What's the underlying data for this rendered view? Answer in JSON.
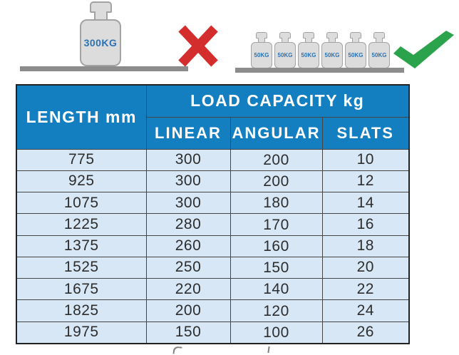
{
  "illustration": {
    "wrong": {
      "weight_label": "300KG",
      "icon": "x-mark"
    },
    "right": {
      "weight_label": "50KG",
      "weight_count": 6,
      "icon": "check-mark"
    }
  },
  "table": {
    "header": {
      "length_label": "LENGTH mm",
      "capacity_label": "LOAD CAPACITY kg",
      "sub_columns": [
        "LINEAR",
        "ANGULAR",
        "SLATS"
      ]
    }
  },
  "chart_data": {
    "type": "table",
    "title": "LOAD CAPACITY kg",
    "columns": [
      "LENGTH mm",
      "LINEAR",
      "ANGULAR",
      "SLATS"
    ],
    "rows": [
      [
        775,
        300,
        200,
        10
      ],
      [
        925,
        300,
        200,
        12
      ],
      [
        1075,
        300,
        180,
        14
      ],
      [
        1225,
        280,
        170,
        16
      ],
      [
        1375,
        260,
        160,
        18
      ],
      [
        1525,
        250,
        150,
        20
      ],
      [
        1675,
        220,
        140,
        22
      ],
      [
        1825,
        200,
        120,
        24
      ],
      [
        1975,
        150,
        100,
        26
      ]
    ]
  },
  "colors": {
    "header_bg": "#147fc0",
    "row_bg": "#d7e7f5",
    "table_border": "#222222",
    "x_mark": "#d32d2d",
    "check_mark": "#2aa34c",
    "weight_fill": "#dcdcdc",
    "weight_border": "#a3a3a3",
    "weight_label": "#2a72b5",
    "shelf": "#8c8c8c"
  }
}
